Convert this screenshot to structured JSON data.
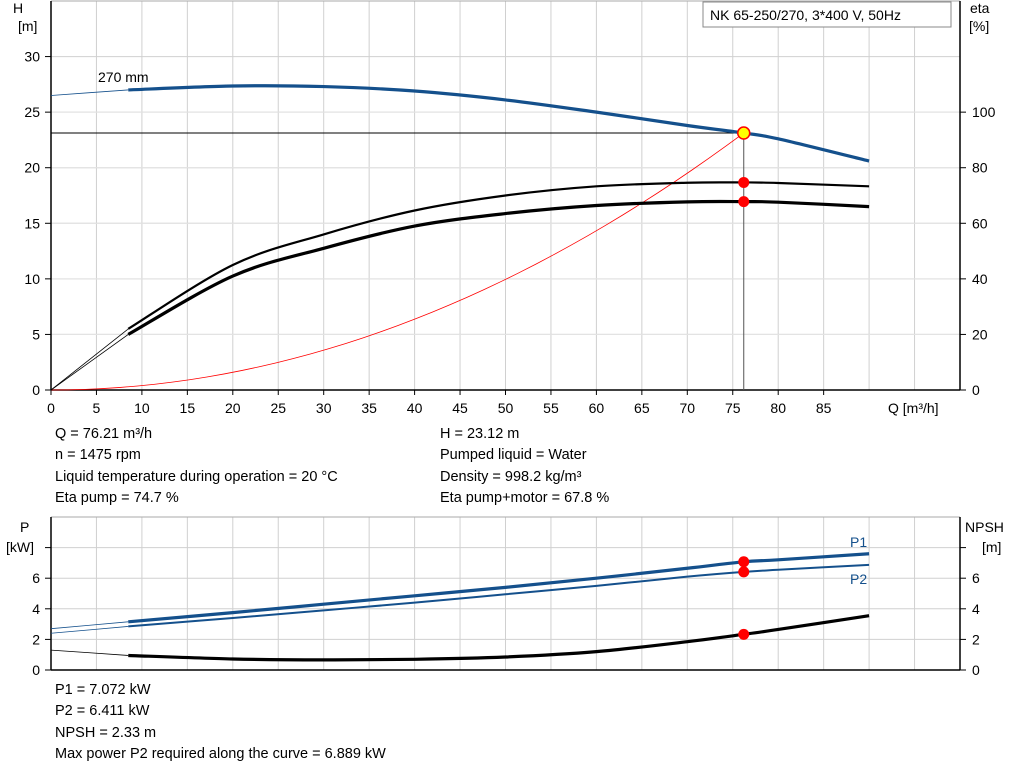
{
  "chart_data": [
    {
      "type": "line",
      "title": "NK 65-250/270, 3*400 V, 50Hz",
      "xlabel": "Q [m³/h]",
      "ylabel": "H\n[m]",
      "y2label": "eta\n[%]",
      "xlim": [
        0,
        100
      ],
      "ylim": [
        0,
        35
      ],
      "y2lim": [
        0,
        140
      ],
      "x_ticks": [
        0,
        5,
        10,
        15,
        20,
        25,
        30,
        35,
        40,
        45,
        50,
        55,
        60,
        65,
        70,
        75,
        80,
        85
      ],
      "y_ticks": [
        0,
        5,
        10,
        15,
        20,
        25,
        30
      ],
      "y2_ticks": [
        0,
        20,
        40,
        60,
        80,
        100
      ],
      "grid": true,
      "x": [
        0,
        8.5,
        20,
        30,
        40,
        50,
        60,
        70,
        76.21,
        80,
        90
      ],
      "solid_from": 8.5,
      "series": [
        {
          "name": "270 mm",
          "axis": "H",
          "color": "#14508c",
          "values": [
            26.5,
            27.0,
            27.35,
            27.3,
            26.9,
            26.1,
            25.0,
            23.8,
            23.12,
            22.6,
            20.6
          ]
        },
        {
          "axis": "eta",
          "color": "#000000",
          "values": [
            0,
            22,
            45,
            56,
            64.6,
            70,
            73.3,
            74.6,
            74.7,
            74.5,
            73.3
          ]
        },
        {
          "axis": "eta",
          "color": "#000000",
          "values": [
            0,
            20,
            41,
            51,
            59,
            63.5,
            66.4,
            67.7,
            67.8,
            67.6,
            66
          ]
        }
      ],
      "system_curve": {
        "color": "#ff0000",
        "through": [
          76.21,
          23.12
        ]
      },
      "duty_point": {
        "Q": 76.21,
        "H": 23.12,
        "eta_pump": 74.7,
        "eta_pump_motor": 67.8
      }
    },
    {
      "type": "line",
      "ylabel": "P\n[kW]",
      "y2label": "NPSH\n[m]",
      "xlim": [
        0,
        100
      ],
      "ylim": [
        0,
        10
      ],
      "y2lim": [
        0,
        10
      ],
      "y_ticks": [
        0,
        2,
        4,
        6,
        8
      ],
      "y_tick_labels": [
        "0",
        "2",
        "4",
        "6",
        ""
      ],
      "grid": true,
      "x": [
        0,
        8.5,
        20,
        30,
        40,
        50,
        60,
        70,
        76.21,
        80,
        90
      ],
      "solid_from": 8.5,
      "series": [
        {
          "name": "P1",
          "axis": "P",
          "color": "#14508c",
          "values": [
            2.7,
            3.15,
            3.75,
            4.3,
            4.85,
            5.4,
            6.0,
            6.65,
            7.072,
            7.2,
            7.6
          ]
        },
        {
          "name": "P2",
          "axis": "P",
          "color": "#14508c",
          "values": [
            2.4,
            2.85,
            3.4,
            3.9,
            4.4,
            4.95,
            5.5,
            6.1,
            6.411,
            6.55,
            6.87
          ]
        },
        {
          "axis": "NPSH",
          "color": "#000000",
          "values": [
            1.3,
            0.95,
            0.72,
            0.66,
            0.7,
            0.85,
            1.2,
            1.85,
            2.33,
            2.65,
            3.55
          ]
        }
      ],
      "duty_point": {
        "Q": 76.21,
        "P1": 7.072,
        "P2": 6.411,
        "NPSH": 2.33
      }
    }
  ],
  "info_top": {
    "left": [
      "Q = 76.21 m³/h",
      "n = 1475 rpm",
      "Liquid temperature during operation = 20 °C",
      "Eta pump = 74.7 %"
    ],
    "right": [
      "H = 23.12 m",
      "Pumped liquid = Water",
      "Density = 998.2 kg/m³",
      "Eta pump+motor = 67.8 %"
    ]
  },
  "info_bottom": [
    "P1 = 7.072 kW",
    "P2 = 6.411 kW",
    "NPSH = 2.33 m",
    "Max power P2 required along the curve = 6.889 kW"
  ],
  "colors": {
    "curve_blue": "#14508c",
    "duty_point_fill": "#ffff00",
    "marker_red": "#ff0000",
    "grid": "#d0d0d0"
  }
}
